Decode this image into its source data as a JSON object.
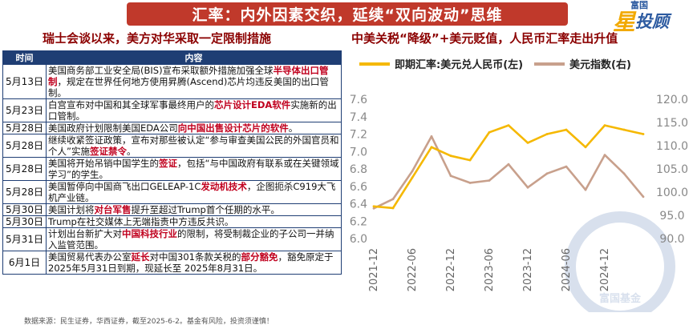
{
  "header": {
    "banner_title": "汇率：内外因素交织，延续“双向波动”思维"
  },
  "logo": {
    "top_text": "富国",
    "star_char": "星",
    "main_text": "投顾",
    "watermark_text": "富国基金"
  },
  "left_panel": {
    "title": "瑞士会谈以来，美方对华采取一定限制措施",
    "columns": [
      "时间",
      "内容"
    ],
    "rows": [
      {
        "date": "5月13日",
        "segments": [
          {
            "t": "美国商务部工业安全局(BIS)宣布采取额外措施加强全球",
            "h": false
          },
          {
            "t": "半导体出口管制",
            "h": true
          },
          {
            "t": "，规定在世界任何地方使用昇腾(Ascend)芯片均违反美国的出口管制。",
            "h": false
          }
        ]
      },
      {
        "date": "5月23日",
        "segments": [
          {
            "t": "白宫宣布对中国和其全球军事最终用户的",
            "h": false
          },
          {
            "t": "芯片设计EDA软件",
            "h": true
          },
          {
            "t": "实施新的出口管制。",
            "h": false
          }
        ]
      },
      {
        "date": "5月28日",
        "segments": [
          {
            "t": "美国政府计划限制美国EDA公司",
            "h": false
          },
          {
            "t": "向中国出售设计芯片的软件",
            "h": true
          },
          {
            "t": "。",
            "h": false
          }
        ]
      },
      {
        "date": "5月28日",
        "segments": [
          {
            "t": "继续收紧签证政策，宣布对那些被认定“参与审查美国公民的外国官员和个人”实施",
            "h": false
          },
          {
            "t": "签证禁令",
            "h": true
          },
          {
            "t": "。",
            "h": false
          }
        ]
      },
      {
        "date": "5月28日",
        "segments": [
          {
            "t": "美国将开始吊销中国学生的",
            "h": false
          },
          {
            "t": "签证",
            "h": true
          },
          {
            "t": "，包括“与中国政府有联系或在关键领域学习”的学生。",
            "h": false
          }
        ]
      },
      {
        "date": "5月28日",
        "segments": [
          {
            "t": "美国暂停向中国商飞出口GELEAP-1C",
            "h": false
          },
          {
            "t": "发动机技术",
            "h": true
          },
          {
            "t": "，企图扼杀C919大飞机产业链。",
            "h": false
          }
        ]
      },
      {
        "date": "5月30日",
        "segments": [
          {
            "t": "美国计划将",
            "h": false
          },
          {
            "t": "对台军售",
            "h": true
          },
          {
            "t": "提升至超过Trump首个任期的水平。",
            "h": false
          }
        ]
      },
      {
        "date": "5月30日",
        "segments": [
          {
            "t": "Trump在社交媒体上无端指责中方违反共识。",
            "h": false
          }
        ]
      },
      {
        "date": "5月31日",
        "segments": [
          {
            "t": "计划出台新扩大对",
            "h": false
          },
          {
            "t": "中国科技行业",
            "h": true
          },
          {
            "t": "的限制，将受制裁企业的子公司一并纳入监管范围。",
            "h": false
          }
        ]
      },
      {
        "date": "6月1日",
        "segments": [
          {
            "t": "美国贸易代表办公室",
            "h": false
          },
          {
            "t": "延长",
            "h": true
          },
          {
            "t": "对中国301条款关税的",
            "h": false
          },
          {
            "t": "部分豁免",
            "h": true
          },
          {
            "t": "，豁免原定于2025年5月31日到期，现延长至 2025年8月31日。",
            "h": false
          }
        ]
      }
    ]
  },
  "footnote": "数据来源：民生证券，华西证券，截至2025-6-2。基金有风险，投资须谨慎！",
  "chart_data": {
    "type": "line",
    "title": "中美关税“降级”+美元贬值，人民币汇率走出升值",
    "x": [
      "2021-12",
      "2022-03",
      "2022-06",
      "2022-09",
      "2022-12",
      "2023-03",
      "2023-06",
      "2023-09",
      "2023-12",
      "2024-03",
      "2024-06",
      "2024-09",
      "2024-12",
      "2025-03",
      "2025-05"
    ],
    "x_tick_labels": [
      "2021-12",
      "2022-06",
      "2022-12",
      "2023-06",
      "2023-12",
      "2024-06",
      "2024-12"
    ],
    "legend_position": "top",
    "grid": false,
    "series": [
      {
        "name": "即期汇率:美元兑人民币(左)",
        "axis": "left",
        "color": "#f5b800",
        "values": [
          6.37,
          6.35,
          6.7,
          7.05,
          6.95,
          6.9,
          7.22,
          7.3,
          7.1,
          7.2,
          7.25,
          7.05,
          7.3,
          7.25,
          7.2
        ]
      },
      {
        "name": "美元指数(右)",
        "axis": "right",
        "color": "#c8a08c",
        "values": [
          96.5,
          98.5,
          104.5,
          112.0,
          103.5,
          102.0,
          102.5,
          106.0,
          101.0,
          104.0,
          105.5,
          100.5,
          108.0,
          104.0,
          99.0
        ]
      }
    ],
    "y_left": {
      "min": 6.0,
      "max": 7.6,
      "ticks": [
        "6.0",
        "6.2",
        "6.4",
        "6.6",
        "6.8",
        "7.0",
        "7.2",
        "7.4",
        "7.6"
      ]
    },
    "y_right": {
      "min": 90.0,
      "max": 120.0,
      "ticks": [
        "90.0",
        "95.0",
        "100.0",
        "105.0",
        "110.0",
        "115.0",
        "120.0"
      ]
    }
  }
}
